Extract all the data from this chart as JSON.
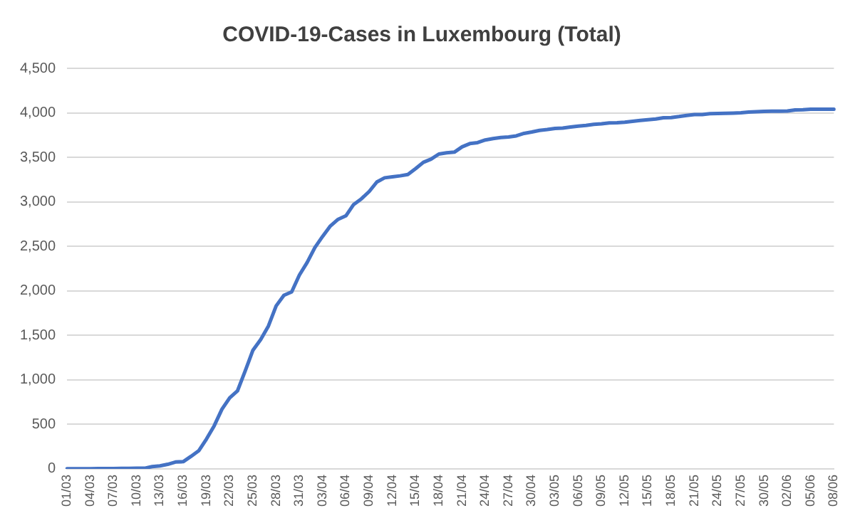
{
  "chart_data": {
    "type": "line",
    "title": "COVID-19-Cases in Luxembourg (Total)",
    "categories": [
      "01/03",
      null,
      null,
      "04/03",
      null,
      null,
      "07/03",
      null,
      null,
      "10/03",
      null,
      null,
      "13/03",
      null,
      null,
      "16/03",
      null,
      null,
      "19/03",
      null,
      null,
      "22/03",
      null,
      null,
      "25/03",
      null,
      null,
      "28/03",
      null,
      null,
      "31/03",
      null,
      null,
      "03/04",
      null,
      null,
      "06/04",
      null,
      null,
      "09/04",
      null,
      null,
      "12/04",
      null,
      null,
      "15/04",
      null,
      null,
      "18/04",
      null,
      null,
      "21/04",
      null,
      null,
      "24/04",
      null,
      null,
      "27/04",
      null,
      null,
      "30/04",
      null,
      null,
      "03/05",
      null,
      null,
      "06/05",
      null,
      null,
      "09/05",
      null,
      null,
      "12/05",
      null,
      null,
      "15/05",
      null,
      null,
      "18/05",
      null,
      null,
      "21/05",
      null,
      null,
      "24/05",
      null,
      null,
      "27/05",
      null,
      null,
      "30/05",
      null,
      null,
      "02/06",
      null,
      null,
      "05/06",
      null,
      null,
      "08/06"
    ],
    "series": [
      {
        "color": "#4472c4",
        "values": [
          1,
          1,
          1,
          2,
          3,
          3,
          4,
          5,
          5,
          7,
          7,
          26,
          34,
          51,
          77,
          81,
          140,
          203,
          335,
          484,
          670,
          798,
          875,
          1099,
          1333,
          1453,
          1605,
          1831,
          1950,
          1988,
          2178,
          2319,
          2487,
          2612,
          2729,
          2804,
          2843,
          2970,
          3034,
          3115,
          3223,
          3270,
          3281,
          3292,
          3307,
          3373,
          3444,
          3480,
          3537,
          3550,
          3558,
          3618,
          3654,
          3665,
          3695,
          3711,
          3723,
          3729,
          3741,
          3769,
          3784,
          3802,
          3812,
          3824,
          3828,
          3840,
          3851,
          3859,
          3871,
          3877,
          3886,
          3888,
          3894,
          3904,
          3915,
          3923,
          3930,
          3945,
          3947,
          3958,
          3971,
          3980,
          3981,
          3990,
          3993,
          3995,
          3997,
          4000,
          4008,
          4012,
          4016,
          4018,
          4019,
          4020,
          4032,
          4035,
          4040,
          4040,
          4040,
          4040
        ]
      }
    ],
    "ylim": [
      0,
      4500
    ],
    "yticks": [
      0,
      {
        "value": 500,
        "label": "500"
      },
      {
        "value": 1000,
        "label": "1,000"
      },
      {
        "value": 1500,
        "label": "1,500"
      },
      {
        "value": 2000,
        "label": "2,000"
      },
      {
        "value": 2500,
        "label": "2,500"
      },
      {
        "value": 3000,
        "label": "3,000"
      },
      {
        "value": 3500,
        "label": "3,500"
      },
      {
        "value": 4000,
        "label": "4,000"
      },
      {
        "value": 4500,
        "label": "4,500"
      }
    ],
    "grid": "y",
    "legend": false,
    "marker": "none",
    "line_style": "solid"
  }
}
